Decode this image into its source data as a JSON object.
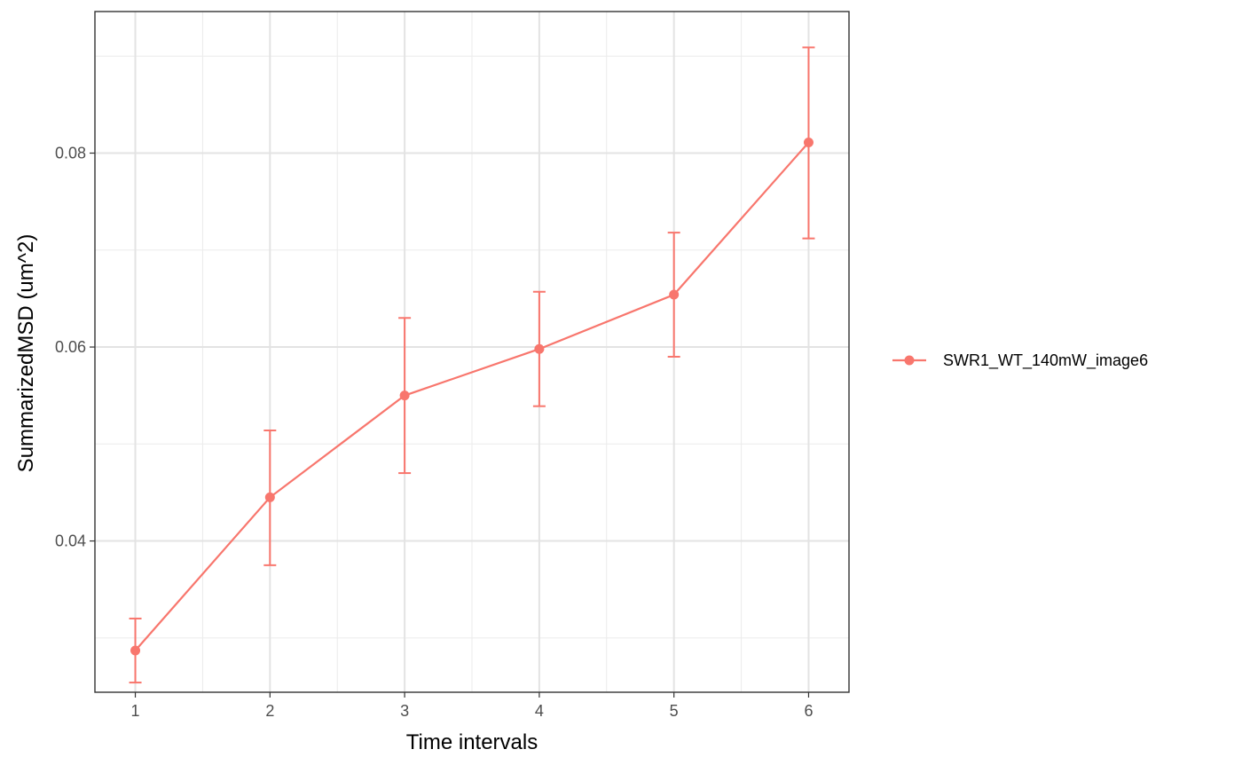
{
  "chart_data": {
    "type": "line",
    "title": "",
    "xlabel": "Time intervals",
    "ylabel": "SummarizedMSD (um^2)",
    "x": [
      1,
      2,
      3,
      4,
      5,
      6
    ],
    "xlim": [
      0.7,
      6.3
    ],
    "ylim": [
      0.0244,
      0.0946
    ],
    "x_ticks": [
      1,
      2,
      3,
      4,
      5,
      6
    ],
    "x_tick_labels": [
      "1",
      "2",
      "3",
      "4",
      "5",
      "6"
    ],
    "y_ticks": [
      0.04,
      0.06,
      0.08
    ],
    "y_tick_labels": [
      "0.04",
      "0.06",
      "0.08"
    ],
    "grid": true,
    "legend_position": "right",
    "series": [
      {
        "name": "SWR1_WT_140mW_image6",
        "color": "#F8766D",
        "values": [
          0.0287,
          0.0445,
          0.055,
          0.0598,
          0.0654,
          0.0811
        ],
        "error_low": [
          0.0254,
          0.0375,
          0.047,
          0.0539,
          0.059,
          0.0712
        ],
        "error_high": [
          0.032,
          0.0514,
          0.063,
          0.0657,
          0.0718,
          0.0909
        ]
      }
    ]
  }
}
